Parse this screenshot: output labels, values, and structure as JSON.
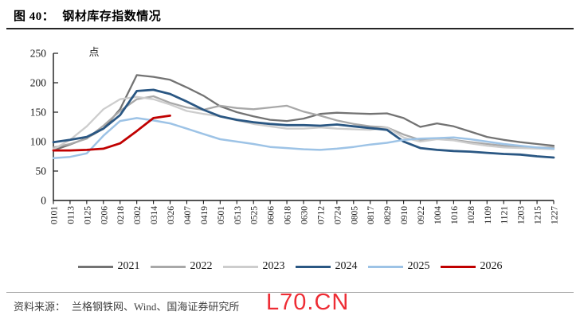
{
  "figure": {
    "label": "图 40：",
    "title": "钢材库存指数情况"
  },
  "chart_data": {
    "type": "line",
    "title": "钢材库存指数情况",
    "unit_label": "点",
    "xlabel": "",
    "ylabel": "点",
    "ylim": [
      0,
      250
    ],
    "ytick_step": 50,
    "grid": false,
    "legend_position": "bottom",
    "categories": [
      "0101",
      "0113",
      "0125",
      "0206",
      "0218",
      "0302",
      "0314",
      "0326",
      "0407",
      "0419",
      "0501",
      "0513",
      "0525",
      "0606",
      "0618",
      "0630",
      "0712",
      "0724",
      "0805",
      "0817",
      "0829",
      "0910",
      "0922",
      "1004",
      "1016",
      "1028",
      "1109",
      "1121",
      "1203",
      "1215",
      "1227"
    ],
    "series": [
      {
        "name": "2021",
        "color": "#737373",
        "width": 2.3,
        "values": [
          85,
          95,
          106,
          122,
          155,
          213,
          210,
          205,
          192,
          178,
          160,
          150,
          143,
          137,
          135,
          139,
          147,
          149,
          148,
          147,
          148,
          140,
          125,
          131,
          126,
          117,
          108,
          103,
          99,
          96,
          93
        ]
      },
      {
        "name": "2022",
        "color": "#a8a8a8",
        "width": 2.3,
        "values": [
          90,
          96,
          105,
          127,
          152,
          172,
          177,
          166,
          158,
          154,
          161,
          157,
          155,
          158,
          161,
          151,
          144,
          136,
          130,
          126,
          124,
          112,
          103,
          106,
          103,
          99,
          96,
          93,
          91,
          90,
          90
        ]
      },
      {
        "name": "2023",
        "color": "#cdcdcd",
        "width": 2.3,
        "values": [
          87,
          103,
          126,
          155,
          172,
          176,
          172,
          163,
          152,
          147,
          143,
          136,
          130,
          126,
          122,
          122,
          124,
          122,
          121,
          120,
          124,
          107,
          100,
          104,
          102,
          97,
          93,
          90,
          89,
          88,
          87
        ]
      },
      {
        "name": "2024",
        "color": "#2a5783",
        "width": 2.8,
        "values": [
          99,
          103,
          108,
          122,
          145,
          186,
          188,
          181,
          168,
          154,
          143,
          137,
          133,
          130,
          128,
          128,
          127,
          129,
          126,
          123,
          120,
          100,
          89,
          86,
          84,
          83,
          81,
          79,
          78,
          75,
          73
        ]
      },
      {
        "name": "2025",
        "color": "#9dc3e6",
        "width": 2.5,
        "values": [
          72,
          74,
          80,
          110,
          135,
          140,
          136,
          131,
          122,
          113,
          104,
          100,
          96,
          91,
          89,
          87,
          86,
          88,
          91,
          95,
          98,
          103,
          105,
          106,
          107,
          104,
          100,
          96,
          93,
          90,
          88
        ]
      },
      {
        "name": "2026",
        "color": "#c00000",
        "width": 2.8,
        "values": [
          85,
          85,
          86,
          88,
          97,
          118,
          140,
          144
        ]
      }
    ]
  },
  "source": {
    "prefix": "资料来源：",
    "text": "兰格钢铁网、Wind、国海证券研究所"
  },
  "watermark": "L70.CN"
}
